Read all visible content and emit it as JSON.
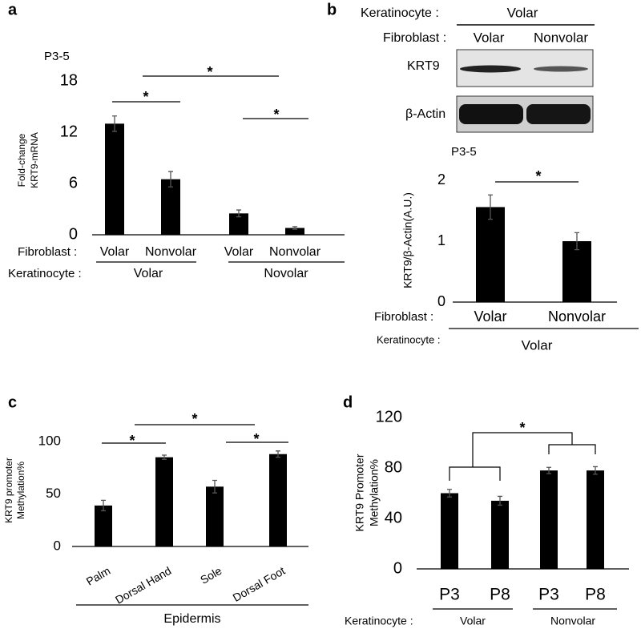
{
  "chart_data": [
    {
      "type": "bar",
      "panel": "a",
      "subtitle": "P3-5",
      "ylabel": [
        "Fold-change",
        "KRT9-mRNA"
      ],
      "categories": [
        "Volar",
        "Nonvolar",
        "Volar",
        "Nonvolar"
      ],
      "values": [
        13,
        6.5,
        2.5,
        0.8
      ],
      "errors": [
        0.9,
        0.9,
        0.4,
        0.15
      ],
      "color": "#000000",
      "ylim": [
        0,
        18
      ],
      "yticks": [
        0,
        6,
        12,
        18
      ],
      "annotations": [
        "*",
        "*",
        "*"
      ],
      "row_labels": [
        "Fibroblast :",
        "Keratinocyte :"
      ],
      "groups": [
        "Volar",
        "Novolar"
      ]
    },
    {
      "type": "bar",
      "panel": "b",
      "subtitle": "P3-5",
      "ylabel": [
        "KRT9/β-Actin(A.U.)"
      ],
      "categories": [
        "Volar",
        "Nonvolar"
      ],
      "values": [
        1.56,
        1.0
      ],
      "errors": [
        0.2,
        0.14
      ],
      "color": "#000000",
      "ylim": [
        0,
        2
      ],
      "yticks": [
        0,
        1,
        2
      ],
      "annotations": [
        "*"
      ],
      "row_labels": [
        "Fibroblast :",
        "Keratinocyte :"
      ],
      "groups": [
        "Volar"
      ]
    },
    {
      "type": "bar",
      "panel": "c",
      "ylabel": [
        "KRT9 promoter",
        "Methylation%"
      ],
      "categories": [
        "Palm",
        "Dorsal Hand",
        "Sole",
        "Dorsal Foot"
      ],
      "values": [
        39,
        85,
        57,
        88
      ],
      "errors": [
        5,
        2,
        6,
        3
      ],
      "color": "#000000",
      "ylim": [
        0,
        100
      ],
      "yticks": [
        0,
        50,
        100
      ],
      "annotations": [
        "*",
        "*",
        "*"
      ],
      "row_labels": [],
      "groups": [
        "Epidermis"
      ]
    },
    {
      "type": "bar",
      "panel": "d",
      "ylabel": [
        "KRT9 Promoter",
        "Methylation%"
      ],
      "categories": [
        "P3",
        "P8",
        "P3",
        "P8"
      ],
      "values": [
        60,
        54,
        78,
        78
      ],
      "errors": [
        3,
        3.5,
        2.5,
        3
      ],
      "color": "#000000",
      "ylim": [
        0,
        120
      ],
      "yticks": [
        0,
        40,
        80,
        120
      ],
      "annotations": [
        "*"
      ],
      "row_labels": [
        "Keratinocyte :"
      ],
      "groups": [
        "Volar",
        "Nonvolar"
      ]
    }
  ],
  "blot": {
    "keratinocyte_label": "Keratinocyte :",
    "keratinocyte": "Volar",
    "fibroblast_label": "Fibroblast :",
    "fibroblast": [
      "Volar",
      "Nonvolar"
    ],
    "rows": [
      "KRT9",
      "β-Actin"
    ]
  }
}
